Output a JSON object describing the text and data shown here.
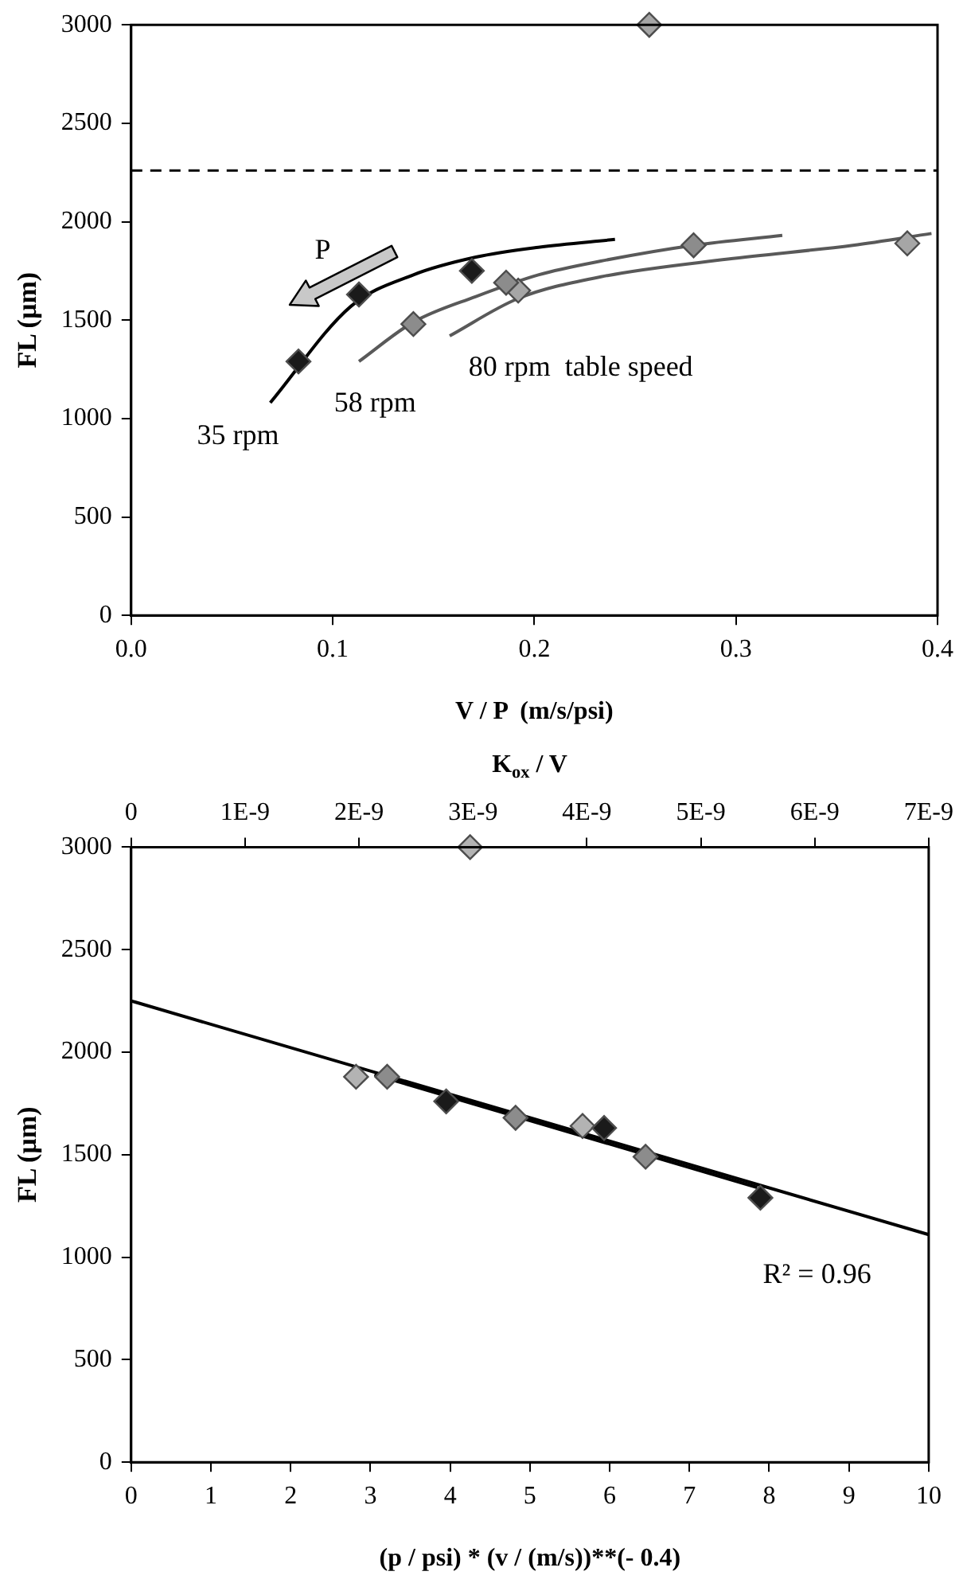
{
  "chart_data": [
    {
      "type": "scatter",
      "xlabel": "V / P  (m/s/psi)",
      "ylabel": "FL (µm)",
      "xlim": [
        0,
        0.4
      ],
      "xticks": [
        {
          "value": 0,
          "label": "0.0"
        },
        0.1,
        0.2,
        0.3,
        0.4
      ],
      "ylim": [
        0,
        3000
      ],
      "yticks": [
        0,
        500,
        1000,
        1500,
        2000,
        2500,
        3000
      ],
      "grid": false,
      "marker": "diamond",
      "ref_lines": [
        {
          "axis": "y",
          "value": 2260,
          "color": "#000000",
          "line_style": "dashed"
        }
      ],
      "annotations": [
        "P",
        "35 rpm",
        "58 rpm",
        "80 rpm  table speed"
      ],
      "series": [
        {
          "type": "line",
          "color": "#000000",
          "marker": "none",
          "x": [
            0.069,
            0.109,
            0.14,
            0.171,
            0.202,
            0.24
          ],
          "values": [
            1080,
            1570,
            1730,
            1820,
            1870,
            1910
          ]
        },
        {
          "type": "line",
          "color": "#595959",
          "marker": "none",
          "x": [
            0.113,
            0.14,
            0.171,
            0.202,
            0.233,
            0.279,
            0.323
          ],
          "values": [
            1290,
            1490,
            1620,
            1730,
            1800,
            1880,
            1930
          ]
        },
        {
          "type": "line",
          "color": "#595959",
          "marker": "none",
          "x": [
            0.158,
            0.192,
            0.233,
            0.296,
            0.358,
            0.397
          ],
          "values": [
            1420,
            1610,
            1720,
            1810,
            1880,
            1940
          ]
        },
        {
          "type": "scatter",
          "color": "#1a1a1a",
          "x": [
            0.083,
            0.113,
            0.169
          ],
          "values": [
            1290,
            1630,
            1750
          ]
        },
        {
          "type": "scatter",
          "color": "#8c8c8c",
          "x": [
            0.14,
            0.186,
            0.279
          ],
          "values": [
            1480,
            1690,
            1880
          ]
        },
        {
          "type": "scatter",
          "color": "#a6a6a6",
          "x": [
            0.192,
            0.385,
            0.257
          ],
          "values": [
            1650,
            1890,
            3000
          ]
        }
      ]
    },
    {
      "type": "scatter",
      "xlabel": "(p / psi) * (v / (m/s))**(- 0.4)",
      "ylabel": "FL (µm)",
      "x2label": "K$_{ox}$ / V",
      "xlim": [
        0,
        10
      ],
      "xticks": [
        0,
        1,
        2,
        3,
        4,
        5,
        6,
        7,
        8,
        9,
        10
      ],
      "x2lim": [
        0,
        7e-09
      ],
      "x2ticks": [
        0,
        {
          "value": 1e-09,
          "label": "1E-9"
        },
        {
          "value": 2e-09,
          "label": "2E-9"
        },
        {
          "value": 3e-09,
          "label": "3E-9"
        },
        {
          "value": 4e-09,
          "label": "4E-9"
        },
        {
          "value": 5e-09,
          "label": "5E-9"
        },
        {
          "value": 6e-09,
          "label": "6E-9"
        },
        {
          "value": 7e-09,
          "label": "7E-9"
        }
      ],
      "ylim": [
        0,
        3000
      ],
      "yticks": [
        0,
        500,
        1000,
        1500,
        2000,
        2500,
        3000
      ],
      "grid": false,
      "marker": "diamond",
      "annotations": [
        "R² = 0.96"
      ],
      "series": [
        {
          "type": "line",
          "color": "#000000",
          "marker": "none",
          "x": [
            0,
            10
          ],
          "values": [
            2250,
            1110
          ]
        },
        {
          "type": "line",
          "color": "#000000",
          "marker": "none",
          "x": [
            3.05,
            7.85
          ],
          "values": [
            1890,
            1340
          ]
        },
        {
          "type": "scatter",
          "color": "#1a1a1a",
          "x": [
            3.95,
            5.93,
            7.89
          ],
          "values": [
            1760,
            1630,
            1290
          ]
        },
        {
          "type": "scatter",
          "color": "#8c8c8c",
          "x": [
            3.21,
            4.82,
            6.45
          ],
          "values": [
            1880,
            1680,
            1490
          ]
        },
        {
          "type": "scatter",
          "color": "#b3b3b3",
          "x": [
            2.82,
            5.66,
            4.25
          ],
          "values": [
            1880,
            1640,
            3000
          ]
        }
      ]
    }
  ]
}
